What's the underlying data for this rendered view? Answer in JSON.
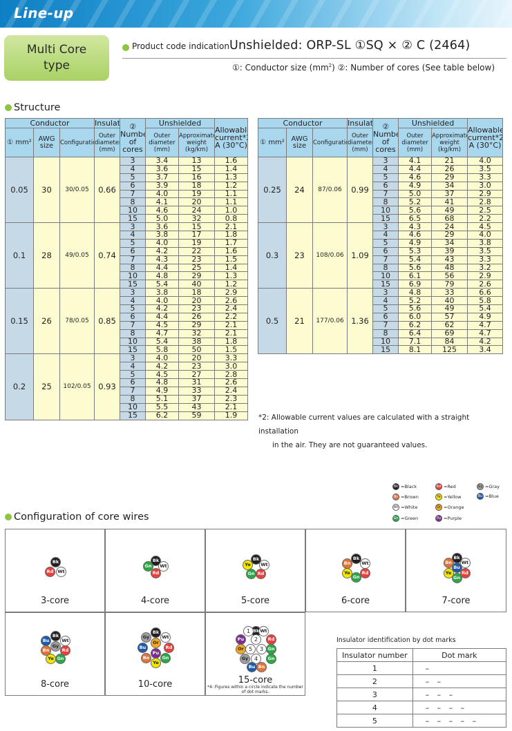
{
  "header": {
    "title": "Line-up"
  },
  "category": {
    "line1": "Multi Core",
    "line2": "type"
  },
  "product_code": {
    "label": "Product code indication",
    "code": "Unshielded: ORP-SL ①SQ × ② C (2464)",
    "note_a": "①: Conductor size (mm",
    "note_sup": "2",
    "note_b": ")   ②: Number of cores (See table below)"
  },
  "structure": {
    "title": "Structure"
  },
  "table_headers": {
    "conductor": "Conductor",
    "insulator": "Insulator",
    "unshielded": "Unshielded",
    "allowable": "Allowable current*2 A (30°C)",
    "col_size": "① mm²",
    "awg": "AWG size",
    "configuration": "Configuration",
    "outer_diameter_ins": "Outer diameter (mm)",
    "num_cores": "② Number of cores",
    "outer_diameter": "Outer diameter (mm)",
    "weight": "Approximate weight (kg/km)"
  },
  "groups_left": [
    {
      "size": "0.05",
      "awg": "30",
      "config": "30/0.05",
      "ins": "0.66",
      "rows": [
        [
          "3",
          "3.4",
          "13",
          "1.6"
        ],
        [
          "4",
          "3.6",
          "15",
          "1.4"
        ],
        [
          "5",
          "3.7",
          "16",
          "1.3"
        ],
        [
          "6",
          "3.9",
          "18",
          "1.2"
        ],
        [
          "7",
          "4.0",
          "19",
          "1.1"
        ],
        [
          "8",
          "4.1",
          "20",
          "1.1"
        ],
        [
          "10",
          "4.6",
          "24",
          "1.0"
        ],
        [
          "15",
          "5.0",
          "32",
          "0.8"
        ]
      ]
    },
    {
      "size": "0.1",
      "awg": "28",
      "config": "49/0.05",
      "ins": "0.74",
      "rows": [
        [
          "3",
          "3.6",
          "15",
          "2.1"
        ],
        [
          "4",
          "3.8",
          "17",
          "1.8"
        ],
        [
          "5",
          "4.0",
          "19",
          "1.7"
        ],
        [
          "6",
          "4.2",
          "22",
          "1.6"
        ],
        [
          "7",
          "4.3",
          "23",
          "1.5"
        ],
        [
          "8",
          "4.4",
          "25",
          "1.4"
        ],
        [
          "10",
          "4.8",
          "29",
          "1.3"
        ],
        [
          "15",
          "5.4",
          "40",
          "1.2"
        ]
      ]
    },
    {
      "size": "0.15",
      "awg": "26",
      "config": "78/0.05",
      "ins": "0.85",
      "rows": [
        [
          "3",
          "3.8",
          "18",
          "2.9"
        ],
        [
          "4",
          "4.0",
          "20",
          "2.6"
        ],
        [
          "5",
          "4.2",
          "23",
          "2.4"
        ],
        [
          "6",
          "4.4",
          "26",
          "2.2"
        ],
        [
          "7",
          "4.5",
          "29",
          "2.1"
        ],
        [
          "8",
          "4.7",
          "32",
          "2.1"
        ],
        [
          "10",
          "5.4",
          "38",
          "1.8"
        ],
        [
          "15",
          "5.8",
          "50",
          "1.5"
        ]
      ]
    },
    {
      "size": "0.2",
      "awg": "25",
      "config": "102/0.05",
      "ins": "0.93",
      "rows": [
        [
          "3",
          "4.0",
          "20",
          "3.3"
        ],
        [
          "4",
          "4.2",
          "23",
          "3.0"
        ],
        [
          "5",
          "4.5",
          "27",
          "2.8"
        ],
        [
          "6",
          "4.8",
          "31",
          "2.6"
        ],
        [
          "7",
          "4.9",
          "33",
          "2.4"
        ],
        [
          "8",
          "5.1",
          "37",
          "2.3"
        ],
        [
          "10",
          "5.5",
          "43",
          "2.1"
        ],
        [
          "15",
          "6.2",
          "59",
          "1.9"
        ]
      ]
    }
  ],
  "groups_right": [
    {
      "size": "0.25",
      "awg": "24",
      "config": "87/0.06",
      "ins": "0.99",
      "rows": [
        [
          "3",
          "4.1",
          "21",
          "4.0"
        ],
        [
          "4",
          "4.4",
          "26",
          "3.5"
        ],
        [
          "5",
          "4.6",
          "29",
          "3.3"
        ],
        [
          "6",
          "4.9",
          "34",
          "3.0"
        ],
        [
          "7",
          "5.0",
          "37",
          "2.9"
        ],
        [
          "8",
          "5.2",
          "41",
          "2.8"
        ],
        [
          "10",
          "5.6",
          "49",
          "2.5"
        ],
        [
          "15",
          "6.5",
          "68",
          "2.2"
        ]
      ]
    },
    {
      "size": "0.3",
      "awg": "23",
      "config": "108/0.06",
      "ins": "1.09",
      "rows": [
        [
          "3",
          "4.3",
          "24",
          "4.5"
        ],
        [
          "4",
          "4.6",
          "29",
          "4.0"
        ],
        [
          "5",
          "4.9",
          "34",
          "3.8"
        ],
        [
          "6",
          "5.3",
          "39",
          "3.5"
        ],
        [
          "7",
          "5.4",
          "43",
          "3.3"
        ],
        [
          "8",
          "5.6",
          "48",
          "3.2"
        ],
        [
          "10",
          "6.1",
          "56",
          "2.9"
        ],
        [
          "15",
          "6.9",
          "79",
          "2.6"
        ]
      ]
    },
    {
      "size": "0.5",
      "awg": "21",
      "config": "177/0.06",
      "ins": "1.36",
      "rows": [
        [
          "3",
          "4.8",
          "33",
          "6.6"
        ],
        [
          "4",
          "5.2",
          "40",
          "5.8"
        ],
        [
          "5",
          "5.6",
          "49",
          "5.4"
        ],
        [
          "6",
          "6.0",
          "57",
          "4.9"
        ],
        [
          "7",
          "6.2",
          "62",
          "4.7"
        ],
        [
          "8",
          "6.4",
          "69",
          "4.7"
        ],
        [
          "10",
          "7.1",
          "84",
          "4.2"
        ],
        [
          "15",
          "8.1",
          "125",
          "3.4"
        ]
      ]
    }
  ],
  "footnote": {
    "line1": "*2: Allowable current values are calculated with a straight installation",
    "line2": "in the air. They are not guaranteed values."
  },
  "color_legend": [
    {
      "code": "Bk",
      "name": "=Black",
      "color": "#231f20"
    },
    {
      "code": "Rd",
      "name": "=Red",
      "color": "#e8403c"
    },
    {
      "code": "Gy",
      "name": "=Gray",
      "color": "#9d9fa2"
    },
    {
      "code": "Bu",
      "name": "=Blue",
      "color": "#1f5aa8"
    },
    {
      "code": "Bn",
      "name": "=Brown",
      "color": "#e0743a"
    },
    {
      "code": "Ye",
      "name": "=Yellow",
      "color": "#f3e600"
    },
    {
      "code": "Wt",
      "name": "=White",
      "color": "#ffffff"
    },
    {
      "code": "Or",
      "name": "=Orange",
      "color": "#f7a823"
    },
    {
      "code": "Gn",
      "name": "=Green",
      "color": "#2aa845"
    },
    {
      "code": "Pu",
      "name": "=Purple",
      "color": "#7b2f8f"
    }
  ],
  "configuration": {
    "title": "Configuration of core wires",
    "cores": [
      {
        "label": "3-core",
        "wires": [
          "Bk",
          "Rd",
          "Wt"
        ]
      },
      {
        "label": "4-core",
        "wires": [
          "Bk",
          "Gn",
          "Wt",
          "Rd"
        ]
      },
      {
        "label": "5-core",
        "wires": [
          "Bk",
          "Ye",
          "Wt",
          "Gn",
          "Rd"
        ]
      },
      {
        "label": "6-core",
        "wires": [
          "Bk",
          "Bn",
          "Wt",
          "Ye",
          "Gn",
          "Rd"
        ]
      },
      {
        "label": "7-core",
        "wires": [
          "Bk",
          "Bn",
          "Wt",
          "Bu",
          "Ye",
          "Gn",
          "Rd"
        ]
      },
      {
        "label": "8-core",
        "wires": [
          "Bk",
          "Bu",
          "Wt",
          "Bn",
          "Gy",
          "Rd",
          "Ye",
          "Gn"
        ]
      },
      {
        "label": "10-core",
        "wires": [
          "Bk",
          "Gy",
          "Wt",
          "Bu",
          "Or",
          "Rd",
          "Pu",
          "Bn",
          "Gn",
          "Ye"
        ]
      },
      {
        "label": "15-core",
        "wires": [
          "Bk",
          "1",
          "Wt",
          "Pu",
          "2",
          "Rd",
          "Or",
          "5",
          "3",
          "Gn",
          "Gy",
          "4",
          "Gn",
          "Bu",
          "Bn"
        ]
      }
    ],
    "note": "*4: Figures within a circle indicate the number of dot marks."
  },
  "insulator_table": {
    "title": "Insulator identification by dot marks",
    "col1": "Insulator number",
    "col2": "Dot mark",
    "rows": [
      [
        "1",
        "–"
      ],
      [
        "2",
        "– –"
      ],
      [
        "3",
        "– – –"
      ],
      [
        "4",
        "– – – –"
      ],
      [
        "5",
        "– – – – –"
      ]
    ]
  }
}
